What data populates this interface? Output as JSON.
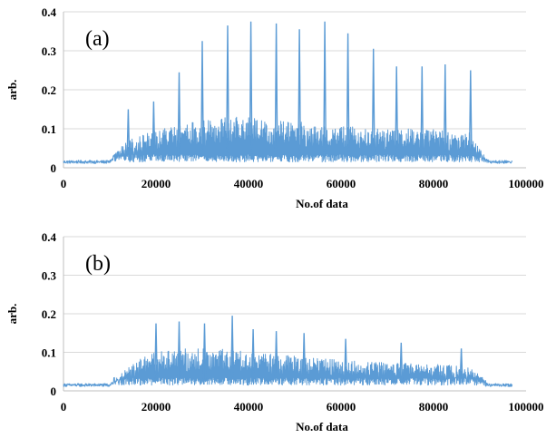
{
  "colors": {
    "series": "#5b9bd5",
    "grid": "#d9d9d9",
    "axis": "#bfbfbf",
    "text": "#000000"
  },
  "chart_data": [
    {
      "type": "line",
      "panel_label": "(a)",
      "xlabel": "No.of data",
      "ylabel": "arb.",
      "xlim": [
        0,
        100000
      ],
      "ylim": [
        0,
        0.4
      ],
      "x_ticks": [
        "0",
        "20000",
        "40000",
        "60000",
        "80000",
        "100000"
      ],
      "y_ticks": [
        "0",
        "0.1",
        "0.2",
        "0.3",
        "0.4"
      ],
      "grid": "horizontal",
      "series": [
        {
          "x": [
            0,
            10000,
            12000,
            14000,
            16000,
            20000,
            25000,
            30000,
            35000,
            40000,
            45000,
            50000,
            55000,
            60000,
            65000,
            70000,
            75000,
            80000,
            85000,
            88000,
            90000,
            92000,
            97000
          ],
          "y": [
            0.015,
            0.015,
            0.05,
            0.07,
            0.08,
            0.1,
            0.11,
            0.12,
            0.13,
            0.13,
            0.12,
            0.12,
            0.11,
            0.11,
            0.1,
            0.1,
            0.1,
            0.1,
            0.09,
            0.09,
            0.05,
            0.015,
            0.015
          ],
          "peaks": [
            {
              "x": 14000,
              "y": 0.15
            },
            {
              "x": 19500,
              "y": 0.17
            },
            {
              "x": 25000,
              "y": 0.245
            },
            {
              "x": 30000,
              "y": 0.325
            },
            {
              "x": 35500,
              "y": 0.365
            },
            {
              "x": 40500,
              "y": 0.375
            },
            {
              "x": 46000,
              "y": 0.37
            },
            {
              "x": 51000,
              "y": 0.355
            },
            {
              "x": 56500,
              "y": 0.375
            },
            {
              "x": 61500,
              "y": 0.345
            },
            {
              "x": 67000,
              "y": 0.305
            },
            {
              "x": 72000,
              "y": 0.26
            },
            {
              "x": 77500,
              "y": 0.26
            },
            {
              "x": 82500,
              "y": 0.265
            },
            {
              "x": 88000,
              "y": 0.25
            }
          ]
        }
      ]
    },
    {
      "type": "line",
      "panel_label": "(b)",
      "xlabel": "No.of data",
      "ylabel": "arb.",
      "xlim": [
        0,
        100000
      ],
      "ylim": [
        0,
        0.4
      ],
      "x_ticks": [
        "0",
        "20000",
        "40000",
        "60000",
        "80000",
        "100000"
      ],
      "y_ticks": [
        "0",
        "0.1",
        "0.2",
        "0.3",
        "0.4"
      ],
      "grid": "horizontal",
      "series": [
        {
          "x": [
            0,
            10000,
            12000,
            14000,
            16000,
            20000,
            25000,
            30000,
            35000,
            40000,
            45000,
            50000,
            55000,
            60000,
            65000,
            70000,
            75000,
            80000,
            85000,
            88000,
            90000,
            92000,
            97000
          ],
          "y": [
            0.015,
            0.015,
            0.04,
            0.06,
            0.08,
            0.1,
            0.11,
            0.11,
            0.11,
            0.1,
            0.095,
            0.09,
            0.085,
            0.08,
            0.075,
            0.075,
            0.07,
            0.07,
            0.065,
            0.06,
            0.04,
            0.015,
            0.015
          ],
          "peaks": [
            {
              "x": 20000,
              "y": 0.175
            },
            {
              "x": 25000,
              "y": 0.18
            },
            {
              "x": 30500,
              "y": 0.175
            },
            {
              "x": 36500,
              "y": 0.195
            },
            {
              "x": 41000,
              "y": 0.16
            },
            {
              "x": 46000,
              "y": 0.155
            },
            {
              "x": 52000,
              "y": 0.15
            },
            {
              "x": 61000,
              "y": 0.135
            },
            {
              "x": 73000,
              "y": 0.125
            },
            {
              "x": 86000,
              "y": 0.11
            }
          ]
        }
      ]
    }
  ]
}
